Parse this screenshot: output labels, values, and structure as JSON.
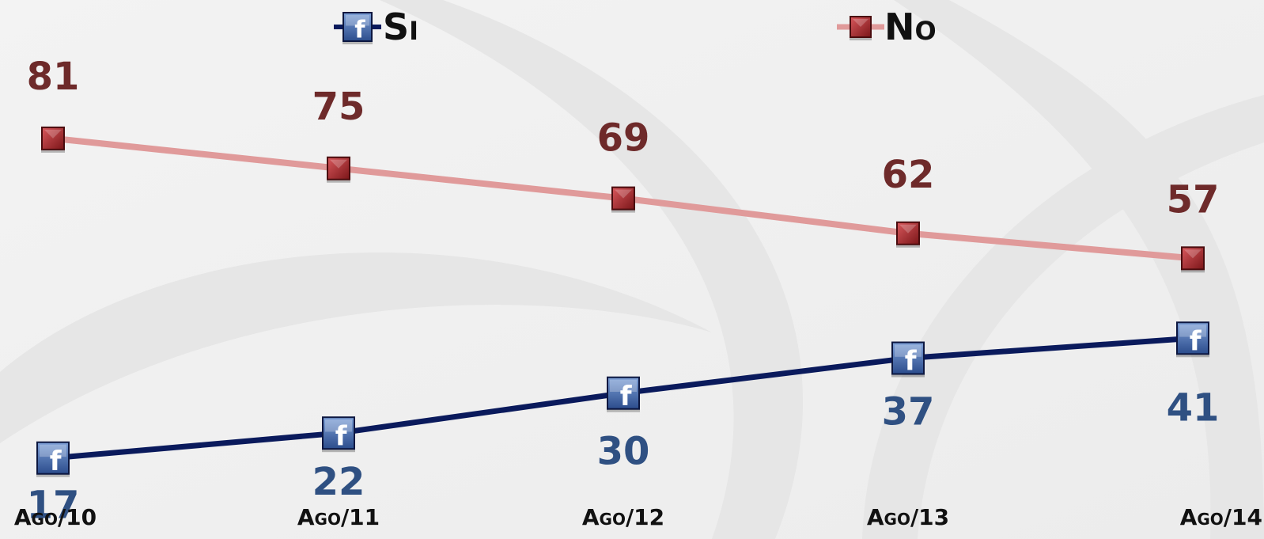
{
  "chart_data": {
    "type": "line",
    "categories": [
      "Ago/10",
      "Ago/11",
      "Ago/12",
      "Ago/13",
      "Ago/14"
    ],
    "series": [
      {
        "name": "Si",
        "values": [
          17,
          22,
          30,
          37,
          41
        ],
        "color": "#0a1a5c",
        "marker": "facebook-icon"
      },
      {
        "name": "No",
        "values": [
          81,
          75,
          69,
          62,
          57
        ],
        "color": "#e09a9a",
        "marker_color": "#a3282d"
      }
    ],
    "ylim": [
      0,
      100
    ],
    "grid": false,
    "legend_position": "top",
    "data_labels": true,
    "title": "",
    "xlabel": "",
    "ylabel": ""
  }
}
